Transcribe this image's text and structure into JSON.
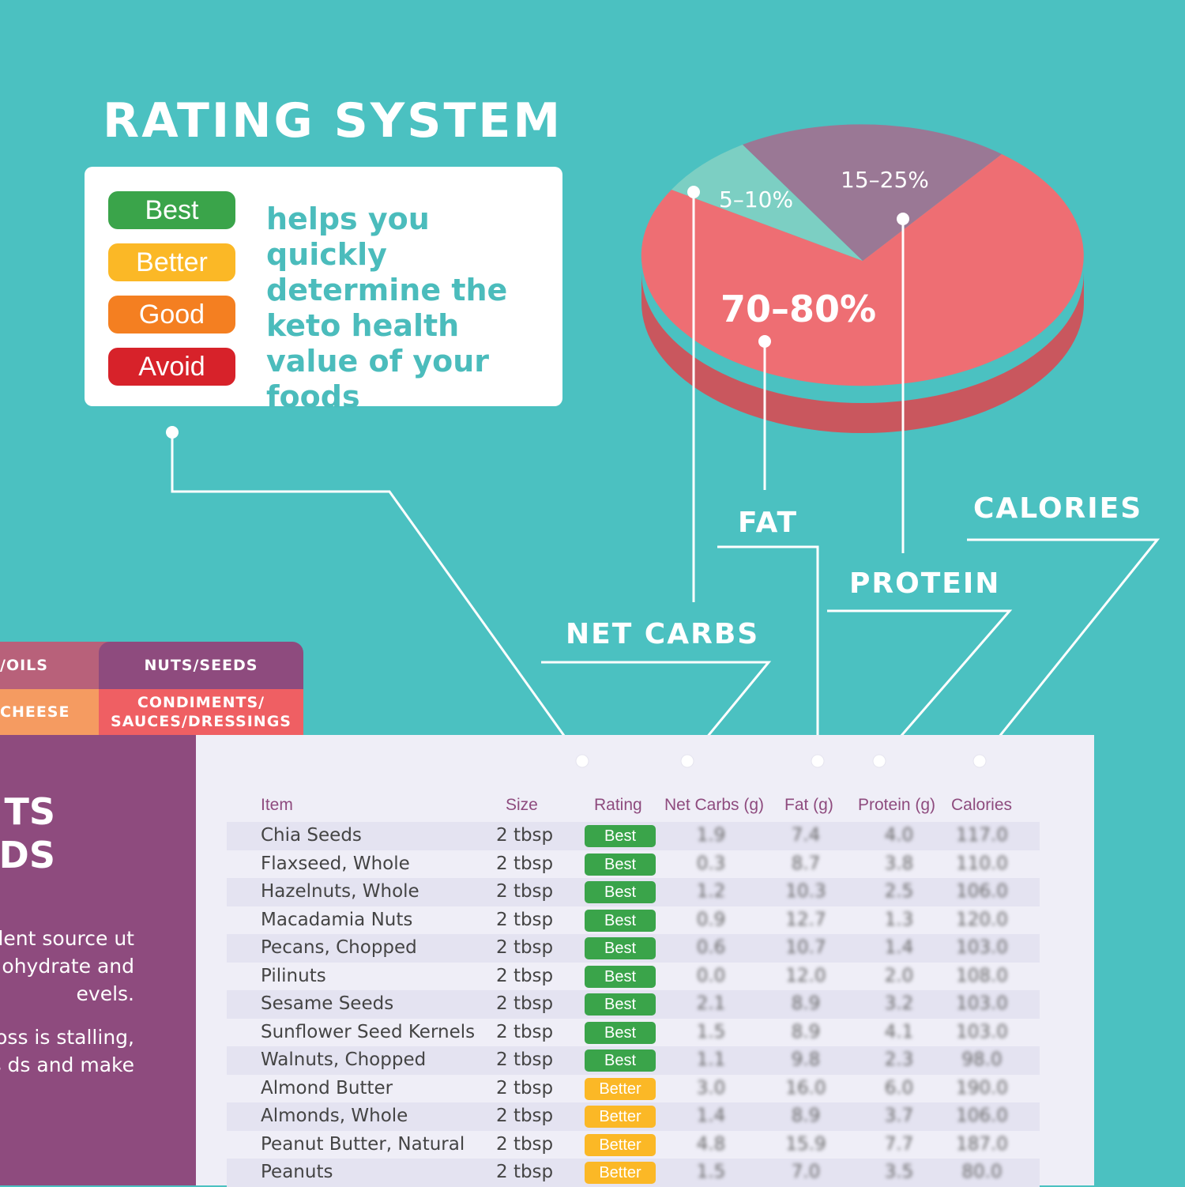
{
  "rating_system": {
    "title": "RATING SYSTEM",
    "badges": [
      {
        "label": "Best",
        "color": "#3aa44a"
      },
      {
        "label": "Better",
        "color": "#fbb826"
      },
      {
        "label": "Good",
        "color": "#f47f21"
      },
      {
        "label": "Avoid",
        "color": "#d7222a"
      }
    ],
    "description": "helps you quickly determine the keto health value of your foods"
  },
  "pie": {
    "slices": [
      {
        "label": "70–80%",
        "nutrient": "FAT",
        "color": "#ee6e73"
      },
      {
        "label": "15–25%",
        "nutrient": "PROTEIN",
        "color": "#9a7895"
      },
      {
        "label": "5–10%",
        "nutrient": "NET CARBS",
        "color": "#7ccfc3"
      }
    ]
  },
  "callouts": {
    "net_carbs": "NET CARBS",
    "fat": "FAT",
    "protein": "PROTEIN",
    "calories": "CALORIES"
  },
  "tabs": {
    "oils": "/OILS",
    "nuts_seeds": "NUTS/SEEDS",
    "cheese": "CHEESE",
    "condiments": "CONDIMENTS/ SAUCES/DRESSINGS"
  },
  "side_panel": {
    "heading_line1": "TS",
    "heading_line2": "DS",
    "paragraph1": "d seeds are llent source ut be mindful ohydrate and evels.",
    "paragraph2": "nd that your oss is stalling, k on nuts ds and make"
  },
  "table": {
    "headers": {
      "item": "Item",
      "size": "Size",
      "rating": "Rating",
      "net_carbs": "Net Carbs (g)",
      "fat": "Fat (g)",
      "protein": "Protein (g)",
      "calories": "Calories"
    },
    "rows": [
      {
        "item": "Chia Seeds",
        "size": "2 tbsp",
        "rating": "Best",
        "net_carbs": "1.9",
        "fat": "7.4",
        "protein": "4.0",
        "calories": "117.0"
      },
      {
        "item": "Flaxseed, Whole",
        "size": "2 tbsp",
        "rating": "Best",
        "net_carbs": "0.3",
        "fat": "8.7",
        "protein": "3.8",
        "calories": "110.0"
      },
      {
        "item": "Hazelnuts, Whole",
        "size": "2 tbsp",
        "rating": "Best",
        "net_carbs": "1.2",
        "fat": "10.3",
        "protein": "2.5",
        "calories": "106.0"
      },
      {
        "item": "Macadamia Nuts",
        "size": "2 tbsp",
        "rating": "Best",
        "net_carbs": "0.9",
        "fat": "12.7",
        "protein": "1.3",
        "calories": "120.0"
      },
      {
        "item": "Pecans, Chopped",
        "size": "2 tbsp",
        "rating": "Best",
        "net_carbs": "0.6",
        "fat": "10.7",
        "protein": "1.4",
        "calories": "103.0"
      },
      {
        "item": "Pilinuts",
        "size": "2 tbsp",
        "rating": "Best",
        "net_carbs": "0.0",
        "fat": "12.0",
        "protein": "2.0",
        "calories": "108.0"
      },
      {
        "item": "Sesame Seeds",
        "size": "2 tbsp",
        "rating": "Best",
        "net_carbs": "2.1",
        "fat": "8.9",
        "protein": "3.2",
        "calories": "103.0"
      },
      {
        "item": "Sunflower Seed Kernels",
        "size": "2 tbsp",
        "rating": "Best",
        "net_carbs": "1.5",
        "fat": "8.9",
        "protein": "4.1",
        "calories": "103.0"
      },
      {
        "item": "Walnuts, Chopped",
        "size": "2 tbsp",
        "rating": "Best",
        "net_carbs": "1.1",
        "fat": "9.8",
        "protein": "2.3",
        "calories": "98.0"
      },
      {
        "item": "Almond Butter",
        "size": "2 tbsp",
        "rating": "Better",
        "net_carbs": "3.0",
        "fat": "16.0",
        "protein": "6.0",
        "calories": "190.0"
      },
      {
        "item": "Almonds, Whole",
        "size": "2 tbsp",
        "rating": "Better",
        "net_carbs": "1.4",
        "fat": "8.9",
        "protein": "3.7",
        "calories": "106.0"
      },
      {
        "item": "Peanut Butter, Natural",
        "size": "2 tbsp",
        "rating": "Better",
        "net_carbs": "4.8",
        "fat": "15.9",
        "protein": "7.7",
        "calories": "187.0"
      },
      {
        "item": "Peanuts",
        "size": "2 tbsp",
        "rating": "Better",
        "net_carbs": "1.5",
        "fat": "7.0",
        "protein": "3.5",
        "calories": "80.0"
      }
    ]
  }
}
